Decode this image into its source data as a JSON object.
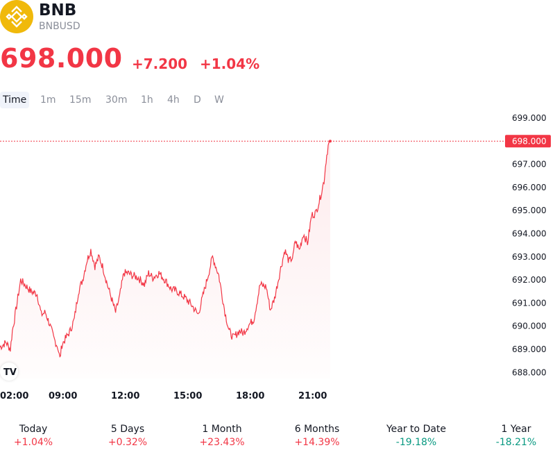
{
  "header": {
    "symbol": "BNB",
    "pair": "BNBUSD",
    "price": "698.000",
    "change": "+7.200",
    "change_pct": "+1.04%"
  },
  "tabs": [
    "Time",
    "1m",
    "15m",
    "30m",
    "1h",
    "4h",
    "D",
    "W"
  ],
  "active_tab": "Time",
  "colors": {
    "up_red": "#f23645",
    "down_green": "#089981",
    "logo_yellow": "#f0b90b"
  },
  "chart_data": {
    "type": "area",
    "ylim": [
      687.5,
      699.5
    ],
    "y_ticks": [
      "699.000",
      "698.000",
      "697.000",
      "696.000",
      "695.000",
      "694.000",
      "693.000",
      "692.000",
      "691.000",
      "690.000",
      "689.000",
      "688.000"
    ],
    "x_ticks": [
      "02:00",
      "09:00",
      "12:00",
      "15:00",
      "18:00",
      "21:00"
    ],
    "last_price_label": "698.000",
    "series": [
      {
        "x_hours": [
          6.0,
          6.3,
          6.5,
          6.6,
          6.7,
          7.0,
          7.3,
          7.5,
          7.8,
          8.0,
          8.2,
          8.4,
          8.6,
          8.8,
          8.9,
          9.0,
          9.2,
          9.4,
          9.6,
          9.8,
          10.0,
          10.2,
          10.4,
          10.6,
          10.8,
          11.0,
          11.2,
          11.4,
          11.6,
          11.8,
          12.0,
          12.2,
          12.4,
          12.7,
          13.0,
          13.2,
          13.4,
          13.7,
          14.0,
          14.3,
          14.6,
          15.0,
          15.3,
          15.6,
          16.0,
          16.3,
          16.6,
          16.9,
          17.1,
          17.3,
          17.6,
          17.8,
          18.0,
          18.3,
          18.6,
          18.9,
          19.1,
          19.3,
          19.6,
          19.8,
          20.0,
          20.2,
          20.3,
          20.5,
          20.7,
          20.9,
          21.1,
          21.3,
          21.5,
          21.7,
          21.8,
          21.9,
          22.0
        ],
        "values": [
          689.1,
          689.3,
          689.0,
          689.8,
          690.3,
          692.0,
          691.7,
          691.5,
          691.4,
          690.5,
          690.6,
          690.1,
          689.5,
          689.1,
          688.6,
          689.2,
          689.5,
          689.8,
          690.3,
          691.5,
          692.0,
          692.8,
          693.3,
          692.6,
          693.0,
          692.5,
          691.8,
          691.2,
          690.6,
          691.3,
          692.3,
          692.3,
          692.2,
          692.1,
          691.8,
          692.3,
          692.1,
          692.3,
          692.0,
          691.6,
          691.5,
          691.2,
          690.9,
          690.5,
          691.9,
          693.0,
          692.2,
          690.6,
          689.8,
          689.5,
          689.8,
          689.7,
          690.0,
          690.3,
          691.8,
          691.7,
          690.7,
          691.2,
          692.5,
          693.3,
          692.8,
          693.0,
          693.7,
          693.3,
          694.0,
          693.6,
          694.8,
          694.9,
          695.5,
          696.3,
          697.2,
          697.8,
          698.0
        ]
      }
    ]
  },
  "performance": [
    {
      "label": "Today",
      "value": "+1.04%",
      "dir": "pos"
    },
    {
      "label": "5 Days",
      "value": "+0.32%",
      "dir": "pos"
    },
    {
      "label": "1 Month",
      "value": "+23.43%",
      "dir": "pos"
    },
    {
      "label": "6 Months",
      "value": "+14.39%",
      "dir": "pos"
    },
    {
      "label": "Year to Date",
      "value": "-19.18%",
      "dir": "neg"
    },
    {
      "label": "1 Year",
      "value": "-18.21%",
      "dir": "neg"
    }
  ]
}
